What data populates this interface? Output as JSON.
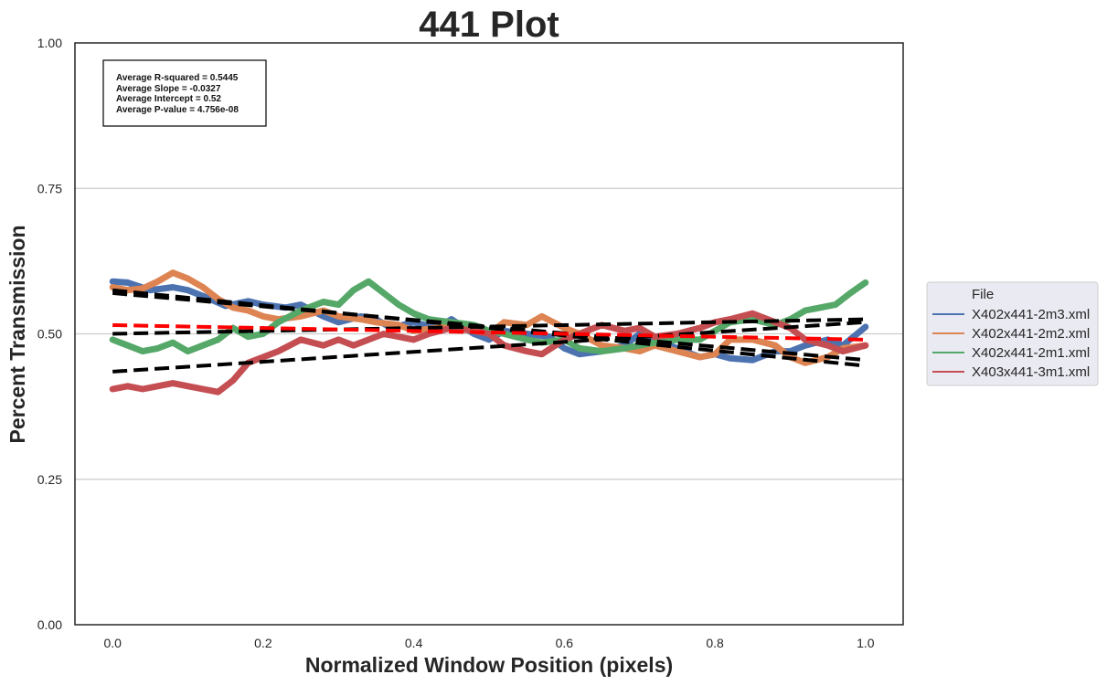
{
  "chart_data": {
    "type": "line",
    "title": "441 Plot",
    "xlabel": "Normalized Window Position (pixels)",
    "ylabel": "Percent Transmission",
    "xlim": [
      -0.05,
      1.05
    ],
    "ylim": [
      0.0,
      1.0
    ],
    "xticks": [
      0.0,
      0.2,
      0.4,
      0.6,
      0.8,
      1.0
    ],
    "xtick_labels": [
      "0.0",
      "0.2",
      "0.4",
      "0.6",
      "0.8",
      "1.0"
    ],
    "yticks": [
      0.0,
      0.25,
      0.5,
      0.75,
      1.0
    ],
    "ytick_labels": [
      "0.00",
      "0.25",
      "0.50",
      "0.75",
      "1.00"
    ],
    "grid": "horizontal",
    "legend": {
      "title": "File",
      "placement": "outside-right",
      "entries": [
        "X402x441-2m3.xml",
        "X402x441-2m2.xml",
        "X402x441-2m1.xml",
        "X403x441-3m1.xml"
      ]
    },
    "annotation_lines": [
      "Average R-squared = 0.5445",
      "Average Slope = -0.0327",
      "Average Intercept = 0.52",
      "Average P-value = 4.756e-08"
    ],
    "series": [
      {
        "name": "X402x441-2m3.xml",
        "color": "#4c72b0",
        "x": [
          0.0,
          0.02,
          0.05,
          0.08,
          0.1,
          0.12,
          0.15,
          0.18,
          0.2,
          0.23,
          0.25,
          0.28,
          0.3,
          0.33,
          0.35,
          0.37,
          0.4,
          0.43,
          0.45,
          0.48,
          0.5,
          0.52,
          0.55,
          0.58,
          0.6,
          0.62,
          0.65,
          0.68,
          0.7,
          0.72,
          0.75,
          0.78,
          0.8,
          0.82,
          0.85,
          0.88,
          0.9,
          0.92,
          0.95,
          0.97,
          1.0
        ],
        "y": [
          0.59,
          0.588,
          0.575,
          0.58,
          0.575,
          0.565,
          0.548,
          0.556,
          0.55,
          0.545,
          0.55,
          0.53,
          0.52,
          0.53,
          0.525,
          0.51,
          0.52,
          0.51,
          0.525,
          0.5,
          0.49,
          0.505,
          0.5,
          0.495,
          0.475,
          0.465,
          0.47,
          0.48,
          0.5,
          0.49,
          0.475,
          0.46,
          0.465,
          0.458,
          0.455,
          0.47,
          0.47,
          0.48,
          0.49,
          0.48,
          0.512
        ]
      },
      {
        "name": "X402x441-2m2.xml",
        "color": "#dd8452",
        "x": [
          0.0,
          0.02,
          0.04,
          0.06,
          0.08,
          0.1,
          0.12,
          0.14,
          0.16,
          0.18,
          0.2,
          0.22,
          0.25,
          0.28,
          0.3,
          0.33,
          0.35,
          0.38,
          0.4,
          0.43,
          0.45,
          0.48,
          0.5,
          0.52,
          0.55,
          0.57,
          0.6,
          0.62,
          0.65,
          0.68,
          0.7,
          0.72,
          0.75,
          0.78,
          0.8,
          0.82,
          0.85,
          0.88,
          0.9,
          0.92,
          0.95,
          0.97,
          1.0
        ],
        "y": [
          0.58,
          0.575,
          0.578,
          0.59,
          0.605,
          0.595,
          0.58,
          0.56,
          0.545,
          0.54,
          0.53,
          0.525,
          0.53,
          0.54,
          0.53,
          0.525,
          0.52,
          0.515,
          0.505,
          0.51,
          0.515,
          0.51,
          0.5,
          0.52,
          0.515,
          0.53,
          0.51,
          0.5,
          0.48,
          0.475,
          0.47,
          0.48,
          0.47,
          0.46,
          0.465,
          0.49,
          0.49,
          0.48,
          0.46,
          0.45,
          0.46,
          0.475,
          0.48
        ]
      },
      {
        "name": "X402x441-2m1.xml",
        "color": "#55a868",
        "x": [
          0.0,
          0.02,
          0.04,
          0.06,
          0.08,
          0.1,
          0.12,
          0.14,
          0.16,
          0.18,
          0.2,
          0.22,
          0.25,
          0.28,
          0.3,
          0.32,
          0.34,
          0.36,
          0.38,
          0.4,
          0.42,
          0.45,
          0.48,
          0.5,
          0.52,
          0.55,
          0.57,
          0.6,
          0.62,
          0.65,
          0.68,
          0.7,
          0.72,
          0.75,
          0.78,
          0.8,
          0.82,
          0.85,
          0.88,
          0.9,
          0.92,
          0.94,
          0.96,
          0.98,
          1.0
        ],
        "y": [
          0.49,
          0.48,
          0.47,
          0.475,
          0.485,
          0.47,
          0.48,
          0.49,
          0.51,
          0.495,
          0.5,
          0.52,
          0.54,
          0.555,
          0.55,
          0.575,
          0.59,
          0.57,
          0.55,
          0.535,
          0.525,
          0.52,
          0.515,
          0.505,
          0.5,
          0.49,
          0.485,
          0.49,
          0.475,
          0.47,
          0.475,
          0.48,
          0.485,
          0.49,
          0.49,
          0.505,
          0.52,
          0.525,
          0.515,
          0.525,
          0.54,
          0.545,
          0.55,
          0.57,
          0.588
        ]
      },
      {
        "name": "X403x441-3m1.xml",
        "color": "#c44e52",
        "x": [
          0.0,
          0.02,
          0.04,
          0.06,
          0.08,
          0.1,
          0.12,
          0.14,
          0.16,
          0.18,
          0.2,
          0.22,
          0.25,
          0.28,
          0.3,
          0.32,
          0.34,
          0.36,
          0.38,
          0.4,
          0.42,
          0.45,
          0.48,
          0.5,
          0.52,
          0.55,
          0.57,
          0.6,
          0.62,
          0.65,
          0.68,
          0.7,
          0.72,
          0.75,
          0.78,
          0.8,
          0.82,
          0.85,
          0.88,
          0.9,
          0.92,
          0.95,
          0.97,
          1.0
        ],
        "y": [
          0.405,
          0.41,
          0.405,
          0.41,
          0.415,
          0.41,
          0.405,
          0.4,
          0.42,
          0.45,
          0.46,
          0.47,
          0.49,
          0.48,
          0.49,
          0.48,
          0.49,
          0.5,
          0.495,
          0.49,
          0.5,
          0.51,
          0.505,
          0.5,
          0.48,
          0.47,
          0.465,
          0.49,
          0.5,
          0.515,
          0.505,
          0.51,
          0.495,
          0.5,
          0.51,
          0.52,
          0.525,
          0.535,
          0.52,
          0.51,
          0.49,
          0.48,
          0.47,
          0.48
        ]
      }
    ],
    "fit_lines": [
      {
        "color": "#000000",
        "style": "dashed",
        "x": [
          0.0,
          1.0
        ],
        "y": [
          0.57,
          0.455
        ]
      },
      {
        "color": "#000000",
        "style": "dashed",
        "x": [
          0.0,
          1.0
        ],
        "y": [
          0.575,
          0.445
        ]
      },
      {
        "color": "#000000",
        "style": "dashed",
        "x": [
          0.0,
          1.0
        ],
        "y": [
          0.5,
          0.525
        ]
      },
      {
        "color": "#000000",
        "style": "dashed",
        "x": [
          0.0,
          1.0
        ],
        "y": [
          0.435,
          0.52
        ]
      },
      {
        "color": "#ff0000",
        "style": "dashed",
        "x": [
          0.0,
          1.0
        ],
        "y": [
          0.515,
          0.49
        ]
      }
    ]
  }
}
